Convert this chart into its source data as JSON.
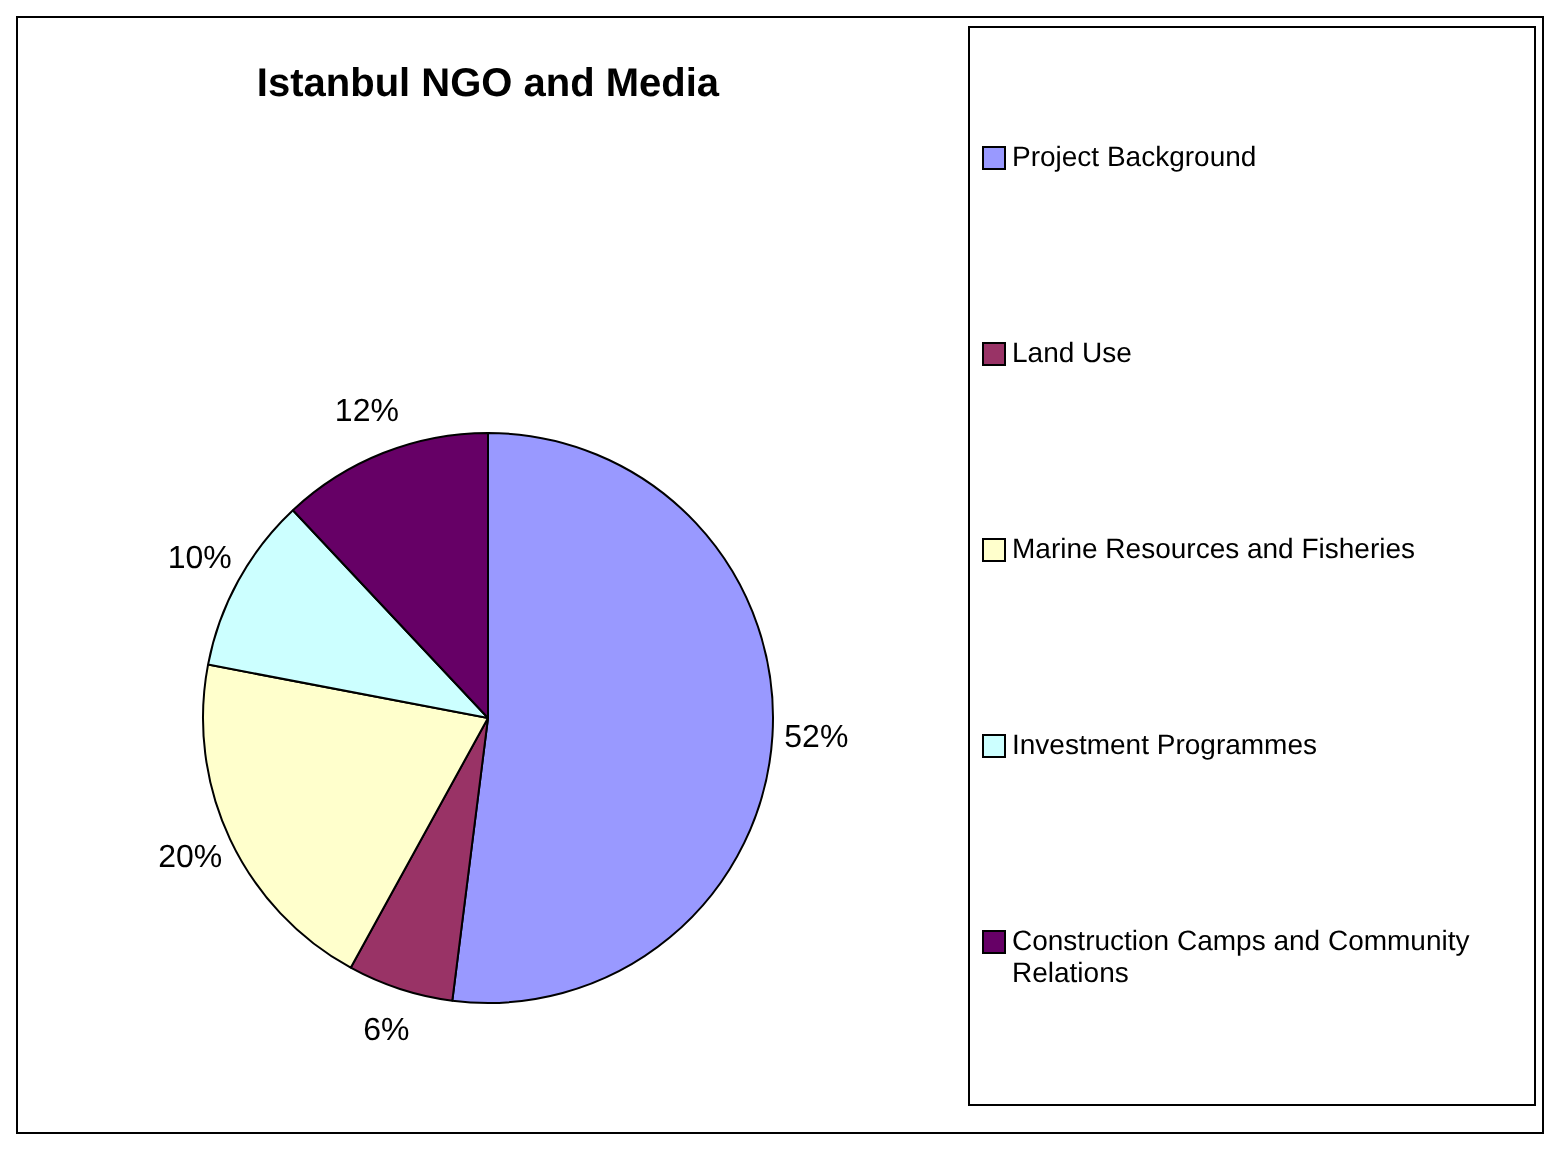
{
  "chart_data": {
    "type": "pie",
    "title": "Istanbul NGO and Media",
    "categories": [
      "Project Background",
      "Land Use",
      "Marine Resources and Fisheries",
      "Investment Programmes",
      "Construction Camps and Community Relations"
    ],
    "values": [
      52,
      6,
      20,
      10,
      12
    ],
    "colors": [
      "#9999ff",
      "#993366",
      "#ffffcc",
      "#ccffff",
      "#660066"
    ],
    "value_labels": [
      "52%",
      "6%",
      "20%",
      "10%",
      "12%"
    ],
    "legend": "right"
  }
}
